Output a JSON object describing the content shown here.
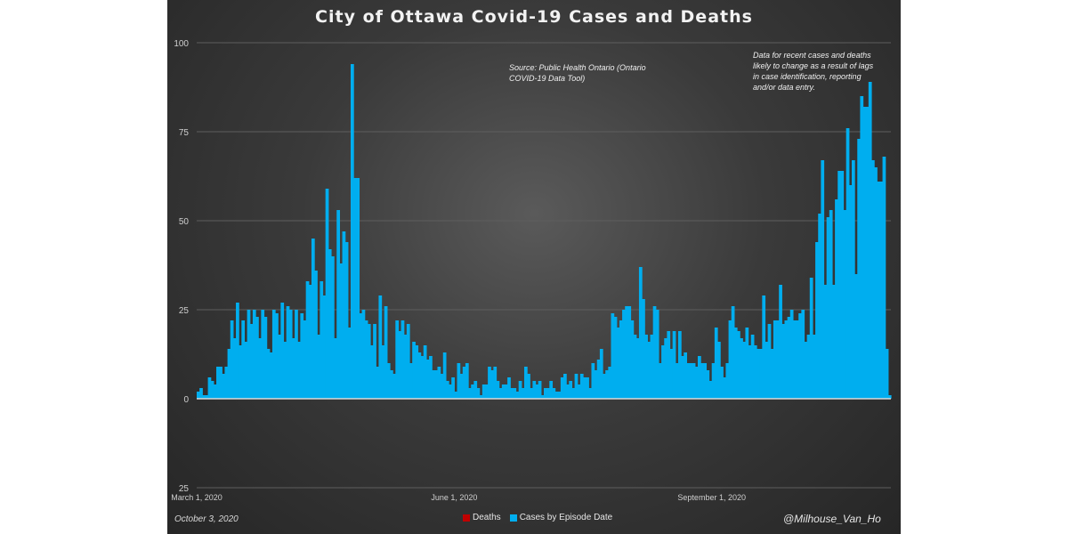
{
  "title": "City of Ottawa Covid-19 Cases and Deaths",
  "source_note": "Source: Public Health Ontario (Ontario COVID-19 Data Tool)",
  "disclaimer": "Data for recent cases and deaths likely to change as a result of lags in case identification, reporting and/or data entry.",
  "date_note": "October 3, 2020",
  "handle": "@Milhouse_Van_Ho",
  "legend": {
    "deaths": "Deaths",
    "cases": "Cases by Episode Date"
  },
  "colors": {
    "cases": "#00aeef",
    "deaths": "#c00000",
    "grid": "#5e5e5e",
    "axis_text": "#d0d0d0"
  },
  "chart_data": {
    "type": "bar",
    "title": "City of Ottawa Covid-19 Cases and Deaths",
    "xlabel": "",
    "ylabel": "",
    "ylim": [
      -25,
      100
    ],
    "y_ticks": [
      {
        "value": 100,
        "label": "100"
      },
      {
        "value": 75,
        "label": "75"
      },
      {
        "value": 50,
        "label": "50"
      },
      {
        "value": 25,
        "label": "25"
      },
      {
        "value": 0,
        "label": "0"
      },
      {
        "value": -25,
        "label": "25"
      }
    ],
    "x_ticks": [
      {
        "index": 0,
        "label": "March 1, 2020"
      },
      {
        "index": 92,
        "label": "June 1, 2020"
      },
      {
        "index": 184,
        "label": "September 1, 2020"
      }
    ],
    "grid": true,
    "legend_position": "bottom",
    "series": [
      {
        "name": "Cases by Episode Date",
        "values": [
          2,
          3,
          1,
          1,
          6,
          5,
          4,
          9,
          9,
          7,
          9,
          14,
          22,
          17,
          27,
          15,
          22,
          16,
          25,
          21,
          25,
          23,
          17,
          25,
          23,
          14,
          13,
          25,
          24,
          18,
          27,
          16,
          26,
          25,
          17,
          25,
          16,
          24,
          22,
          33,
          32,
          45,
          36,
          18,
          33,
          29,
          59,
          42,
          40,
          17,
          53,
          38,
          47,
          44,
          20,
          94,
          62,
          62,
          24,
          25,
          22,
          21,
          15,
          21,
          9,
          29,
          15,
          26,
          10,
          8,
          7,
          22,
          19,
          22,
          18,
          21,
          10,
          16,
          15,
          13,
          12,
          15,
          11,
          12,
          8,
          8,
          9,
          7,
          13,
          5,
          4,
          6,
          2,
          10,
          7,
          9,
          10,
          3,
          4,
          5,
          3,
          1,
          4,
          4,
          9,
          8,
          9,
          5,
          3,
          4,
          4,
          6,
          3,
          3,
          2,
          5,
          3,
          9,
          7,
          3,
          5,
          4,
          5,
          1,
          3,
          3,
          5,
          3,
          2,
          2,
          6,
          7,
          4,
          5,
          3,
          7,
          4,
          7,
          6,
          6,
          3,
          10,
          8,
          11,
          14,
          7,
          8,
          9,
          24,
          23,
          20,
          22,
          25,
          26,
          26,
          22,
          18,
          17,
          37,
          28,
          18,
          16,
          18,
          26,
          25,
          10,
          15,
          17,
          19,
          14,
          19,
          10,
          19,
          12,
          13,
          10,
          10,
          10,
          9,
          12,
          10,
          10,
          8,
          5,
          10,
          20,
          16,
          9,
          6,
          10,
          22,
          26,
          20,
          19,
          17,
          16,
          20,
          15,
          18,
          15,
          14,
          14,
          29,
          16,
          21,
          14,
          22,
          22,
          32,
          21,
          22,
          23,
          25,
          22,
          22,
          24,
          25,
          16,
          18,
          34,
          18,
          44,
          52,
          67,
          32,
          51,
          53,
          32,
          56,
          64,
          64,
          53,
          76,
          60,
          67,
          35,
          73,
          85,
          82,
          82,
          89,
          67,
          65,
          61,
          61,
          68,
          14,
          1
        ],
        "color": "#00aeef"
      },
      {
        "name": "Deaths",
        "values": [
          0,
          0,
          0,
          0,
          0,
          0,
          0,
          0,
          0,
          0,
          0,
          0,
          0,
          0,
          0,
          0,
          0,
          0,
          0,
          0,
          0,
          0,
          0,
          0,
          0,
          0,
          0,
          0,
          0,
          0,
          0,
          0,
          0,
          0,
          0,
          0,
          0,
          0,
          0,
          0,
          0,
          0,
          0,
          0,
          0,
          0,
          0,
          0,
          0,
          0,
          0,
          0,
          0,
          0,
          0,
          0,
          0,
          0,
          0,
          0,
          0,
          0,
          0,
          0,
          0,
          0,
          0,
          0,
          0,
          0,
          0,
          0,
          0,
          0,
          0,
          0,
          0,
          0,
          0,
          0,
          0,
          0,
          0,
          0,
          0,
          0,
          0,
          0,
          0,
          0,
          0,
          0,
          0,
          0,
          0,
          0,
          0,
          0,
          0,
          0,
          0,
          0,
          0,
          0,
          0,
          0,
          0,
          0,
          0,
          0,
          0,
          0,
          0,
          0,
          0,
          0,
          0,
          0,
          0,
          0,
          0,
          0,
          0,
          0,
          0,
          0,
          0,
          0,
          0,
          0,
          0,
          0,
          0,
          0,
          0,
          0,
          0,
          0,
          0,
          0,
          0,
          0,
          0,
          0,
          0,
          0,
          0,
          0,
          0,
          0,
          0,
          0,
          0,
          0,
          0,
          0,
          0,
          0,
          0,
          0,
          0,
          0,
          0,
          0,
          0,
          0,
          0,
          0,
          0,
          0,
          0,
          0,
          0,
          0,
          0,
          0,
          0,
          0,
          0,
          0,
          0,
          0,
          0,
          0,
          0,
          0,
          0,
          0,
          0,
          0,
          0,
          0,
          0,
          0,
          0,
          0,
          0,
          0,
          0,
          0,
          0,
          0,
          0,
          0,
          0,
          0,
          0,
          0,
          0,
          0,
          0,
          0,
          0,
          0,
          0,
          0,
          0,
          0,
          0,
          0,
          0,
          0,
          0,
          0,
          0,
          0,
          0,
          0,
          0,
          0,
          0,
          0,
          0,
          0,
          0,
          0,
          0,
          0,
          0,
          0,
          0,
          0,
          0,
          0,
          0,
          0,
          0,
          0,
          0
        ],
        "color": "#c00000"
      }
    ]
  }
}
